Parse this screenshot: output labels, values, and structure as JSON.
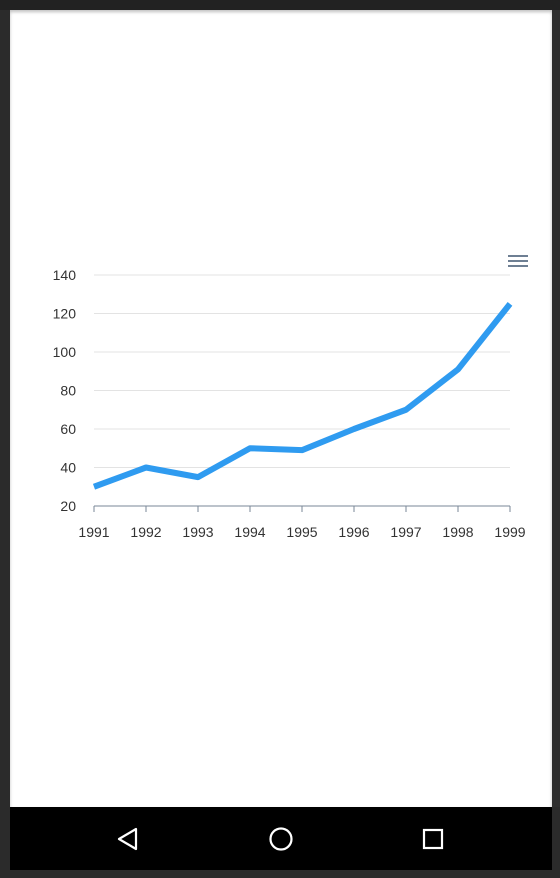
{
  "chart_data": {
    "type": "line",
    "title": "",
    "xlabel": "",
    "ylabel": "",
    "categories": [
      "1991",
      "1992",
      "1993",
      "1994",
      "1995",
      "1996",
      "1997",
      "1998",
      "1999"
    ],
    "series": [
      {
        "values": [
          30,
          40,
          35,
          50,
          49,
          60,
          70,
          91,
          125
        ]
      }
    ],
    "y_ticks": [
      "20",
      "40",
      "60",
      "80",
      "100",
      "120",
      "140"
    ],
    "ylim": [
      20,
      140
    ],
    "grid": true,
    "line_color": "#2f9bf0"
  },
  "toolbar": {
    "menu_icon": "hamburger-menu-icon"
  },
  "nav": {
    "back_icon": "back-triangle-icon",
    "home_icon": "home-circle-icon",
    "recents_icon": "recents-square-icon"
  }
}
